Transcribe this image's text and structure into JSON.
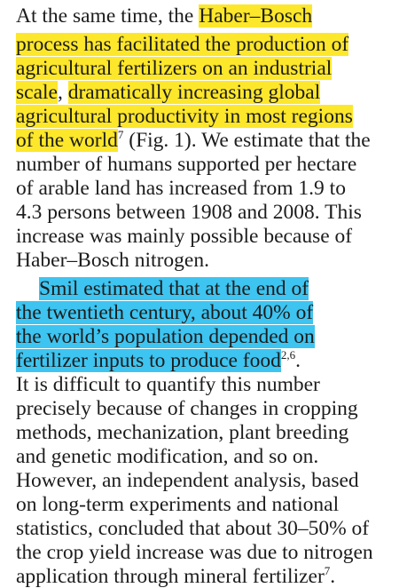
{
  "colors": {
    "highlight_yellow": "#fde72b",
    "highlight_blue": "#3ec4f0"
  },
  "paragraph1": {
    "lines": [
      {
        "plain": "At the same time, the ",
        "hl": "Haber–Bosch"
      },
      {
        "hl": "process has facilitated the production of"
      },
      {
        "hl": "agricultural fertilizers on an industrial"
      },
      {
        "hl1": "scale",
        "plain": ",",
        "hl2": "dramatically increasing global"
      },
      {
        "hl": "agricultural productivity in most regions"
      },
      {
        "hl": "of the world",
        "sup": "7",
        "plain": " (Fig. 1). We estimate that the"
      },
      {
        "plain": "number of humans supported per hectare"
      },
      {
        "plain": "of arable land has increased from 1.9 to"
      },
      {
        "plain": "4.3 persons between 1908 and 2008. This"
      },
      {
        "plain": "increase was mainly possible because of"
      },
      {
        "plain": "Haber–Bosch nitrogen."
      }
    ]
  },
  "paragraph2": {
    "lines": [
      {
        "hl": "Smil estimated that at the end of"
      },
      {
        "hl": "the twentieth century, about 40% of"
      },
      {
        "hl": "the world’s population depended on"
      },
      {
        "hl": "fertilizer inputs to produce food",
        "sup": "2,6",
        "plain": "."
      },
      {
        "plain": "It is difficult to quantify this number"
      },
      {
        "plain": "precisely because of changes in cropping"
      },
      {
        "plain": "methods, mechanization, plant breeding"
      },
      {
        "plain": "and genetic modification, and so on."
      },
      {
        "plain": "However, an independent analysis, based"
      },
      {
        "plain": "on long-term experiments and national"
      },
      {
        "plain": "statistics, concluded that about 30–50% of"
      },
      {
        "plain": "the crop yield increase was due to nitrogen"
      },
      {
        "plain": "application through mineral fertilizer",
        "sup": "7",
        "plain2": "."
      }
    ]
  }
}
